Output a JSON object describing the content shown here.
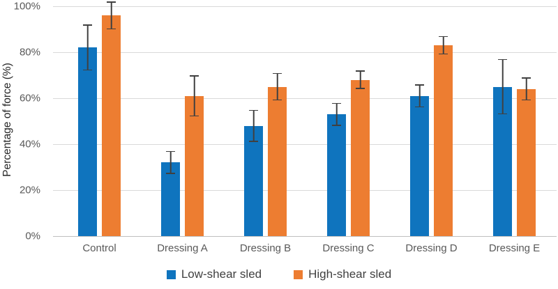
{
  "chart_data": {
    "type": "bar",
    "title": "",
    "xlabel": "",
    "ylabel": "Percentage of force (%)",
    "ylim": [
      0,
      100
    ],
    "ytick_step": 20,
    "yticks": [
      "0%",
      "20%",
      "40%",
      "60%",
      "80%",
      "100%"
    ],
    "grid": "horizontal",
    "legend_position": "bottom",
    "error_bars": true,
    "error_bar_color": "#404040",
    "gridline_color": "#d9d9d9",
    "categories": [
      "Control",
      "Dressing A",
      "Dressing B",
      "Dressing C",
      "Dressing D",
      "Dressing E"
    ],
    "series": [
      {
        "name": "Low-shear sled",
        "color": "#0f74be",
        "values": [
          82,
          32,
          48,
          53,
          61,
          65
        ],
        "errors": [
          10,
          5,
          7,
          5,
          5,
          12
        ]
      },
      {
        "name": "High-shear sled",
        "color": "#ed7d31",
        "values": [
          96,
          61,
          65,
          68,
          83,
          64
        ],
        "errors": [
          6,
          9,
          6,
          4,
          4,
          5
        ]
      }
    ]
  }
}
